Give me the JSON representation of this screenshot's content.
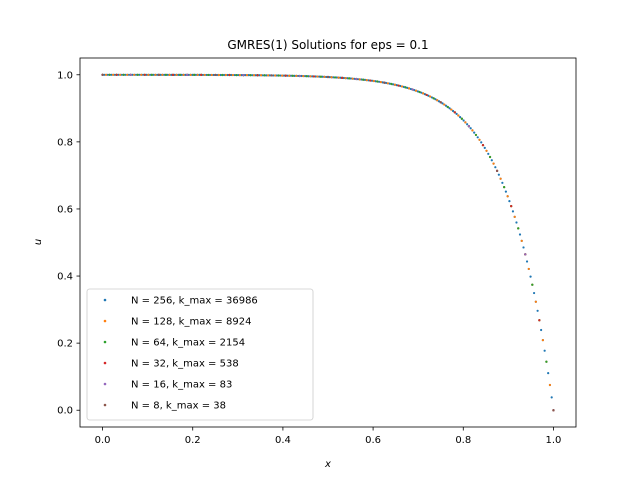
{
  "chart_data": {
    "type": "scatter",
    "title": "GMRES(1) Solutions for eps = 0.1",
    "xlabel": "x",
    "ylabel": "u",
    "xlim": [
      -0.05,
      1.05
    ],
    "ylim": [
      -0.05,
      1.05
    ],
    "xticks": [
      0.0,
      0.2,
      0.4,
      0.6,
      0.8,
      1.0
    ],
    "xtick_labels": [
      "0.0",
      "0.2",
      "0.4",
      "0.6",
      "0.8",
      "1.0"
    ],
    "yticks": [
      0.0,
      0.2,
      0.4,
      0.6,
      0.8,
      1.0
    ],
    "ytick_labels": [
      "0.0",
      "0.2",
      "0.4",
      "0.6",
      "0.8",
      "1.0"
    ],
    "grid": false,
    "legend_position": "lower-left",
    "function": "u(x) = 1 - exp((x - 1) / 0.1), sampled at N+1 equally spaced points on [0, 1]",
    "series": [
      {
        "name": "N = 256, k_max = 36986",
        "n": 256,
        "color": "#1f77b4"
      },
      {
        "name": "N = 128, k_max = 8924",
        "n": 128,
        "color": "#ff7f0e"
      },
      {
        "name": "N = 64, k_max = 2154",
        "n": 64,
        "color": "#2ca02c"
      },
      {
        "name": "N = 32, k_max = 538",
        "n": 32,
        "color": "#d62728"
      },
      {
        "name": "N = 16, k_max = 83",
        "n": 16,
        "color": "#9467bd"
      },
      {
        "name": "N = 8, k_max = 38",
        "n": 8,
        "color": "#8c564b"
      }
    ]
  }
}
